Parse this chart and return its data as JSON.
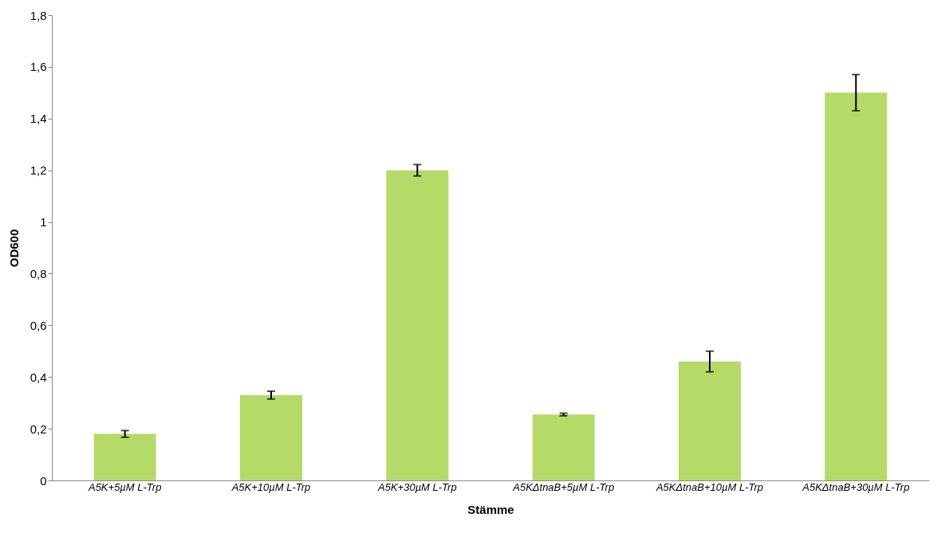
{
  "chart_data": {
    "type": "bar",
    "xlabel": "Stämme",
    "ylabel": "OD600",
    "categories": [
      "A5K+5µM L-Trp",
      "A5K+10µM L-Trp",
      "A5K+30µM L-Trp",
      "A5KΔtnaB+5µM L-Trp",
      "A5KΔtnaB+10µM L-Trp",
      "A5KΔtnaB+30µM L-Trp"
    ],
    "values": [
      0.18,
      0.33,
      1.2,
      0.255,
      0.46,
      1.5
    ],
    "errors": [
      0.013,
      0.015,
      0.022,
      0.005,
      0.04,
      0.07
    ],
    "color": "#b5da68",
    "ylim": [
      0,
      1.8
    ],
    "yticks": [
      0,
      {
        "value": 0.2,
        "label": "0,2"
      },
      {
        "value": 0.4,
        "label": "0,4"
      },
      {
        "value": 0.6,
        "label": "0,6"
      },
      {
        "value": 0.8,
        "label": "0,8"
      },
      1,
      {
        "value": 1.2,
        "label": "1,2"
      },
      {
        "value": 1.4,
        "label": "1,4"
      },
      {
        "value": 1.6,
        "label": "1,6"
      },
      {
        "value": 1.8,
        "label": "1,8"
      }
    ],
    "grid": false
  }
}
